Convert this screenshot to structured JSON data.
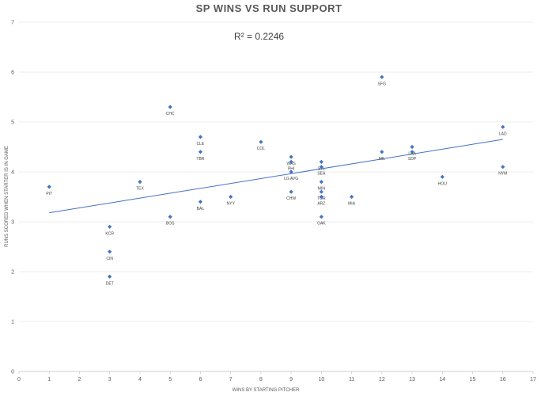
{
  "chart_data": {
    "type": "scatter",
    "title": "SP WINS VS RUN SUPPORT",
    "xlabel": "WINS BY STARTING PITCHER",
    "ylabel": "RUNS SCORED WHEN STARTER IS IN GAME",
    "xlim": [
      0,
      17
    ],
    "ylim": [
      0,
      7
    ],
    "xticks": [
      "0",
      "1",
      "2",
      "3",
      "4",
      "5",
      "6",
      "7",
      "8",
      "9",
      "10",
      "11",
      "12",
      "13",
      "14",
      "15",
      "16",
      "17"
    ],
    "yticks": [
      "0",
      "1",
      "2",
      "3",
      "4",
      "5",
      "6",
      "7"
    ],
    "grid": "horizontal",
    "marker_color": "#4472C4",
    "trendline_color": "#4472C4",
    "annotation": "R² = 0.2246",
    "trendline": {
      "x": [
        1,
        16
      ],
      "y": [
        3.18,
        4.65
      ]
    },
    "points": [
      {
        "label": "PIT",
        "x": 1,
        "y": 3.7
      },
      {
        "label": "KCR",
        "x": 3,
        "y": 2.9
      },
      {
        "label": "CIN",
        "x": 3,
        "y": 2.4
      },
      {
        "label": "DET",
        "x": 3,
        "y": 1.9
      },
      {
        "label": "TEX",
        "x": 4,
        "y": 3.8
      },
      {
        "label": "CHC",
        "x": 5,
        "y": 5.3
      },
      {
        "label": "BOS",
        "x": 5,
        "y": 3.1
      },
      {
        "label": "CLE",
        "x": 6,
        "y": 4.7
      },
      {
        "label": "TBR",
        "x": 6,
        "y": 4.4
      },
      {
        "label": "BAL",
        "x": 6,
        "y": 3.4
      },
      {
        "label": "NYY",
        "x": 7,
        "y": 3.5
      },
      {
        "label": "COL",
        "x": 8,
        "y": 4.6
      },
      {
        "label": "WAS",
        "x": 9,
        "y": 4.3
      },
      {
        "label": "PHI",
        "x": 9,
        "y": 4.2
      },
      {
        "label": "LG AVG",
        "x": 9,
        "y": 4.0
      },
      {
        "label": "CHW",
        "x": 9,
        "y": 3.6
      },
      {
        "label": "STL",
        "x": 10,
        "y": 4.2
      },
      {
        "label": "SEA",
        "x": 10,
        "y": 4.1
      },
      {
        "label": "MIN",
        "x": 10,
        "y": 3.8
      },
      {
        "label": "TOR",
        "x": 10,
        "y": 3.6
      },
      {
        "label": "ARZ",
        "x": 10,
        "y": 3.5
      },
      {
        "label": "OAK",
        "x": 10,
        "y": 3.1
      },
      {
        "label": "MIA",
        "x": 11,
        "y": 3.5
      },
      {
        "label": "SFG",
        "x": 12,
        "y": 5.9
      },
      {
        "label": "MIL",
        "x": 12,
        "y": 4.4
      },
      {
        "label": "LAA",
        "x": 13,
        "y": 4.5
      },
      {
        "label": "SDP",
        "x": 13,
        "y": 4.4
      },
      {
        "label": "HOU",
        "x": 14,
        "y": 3.9
      },
      {
        "label": "LAD",
        "x": 16,
        "y": 4.9
      },
      {
        "label": "NYM",
        "x": 16,
        "y": 4.1
      }
    ]
  }
}
